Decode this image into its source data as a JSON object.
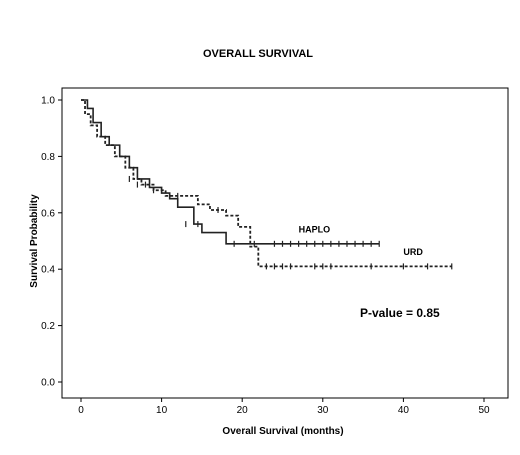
{
  "chart_data": {
    "type": "line",
    "title": "OVERALL SURVIVAL",
    "xlabel": "Overall Survival (months)",
    "ylabel": "Survival Probability",
    "xlim": [
      0,
      50
    ],
    "ylim": [
      0,
      1.0
    ],
    "xticks": [
      "0",
      "10",
      "20",
      "30",
      "40",
      "50"
    ],
    "yticks": [
      "0.0",
      "0.2",
      "0.4",
      "0.6",
      "0.8",
      "1.0"
    ],
    "grid": false,
    "annotation": "P-value = 0.85",
    "series": [
      {
        "name": "HAPLO",
        "style": "solid",
        "color": "#222222",
        "x": [
          0,
          0.8,
          1.5,
          2.5,
          3.5,
          4.8,
          6,
          7,
          8.5,
          10,
          11,
          12,
          14,
          15,
          18,
          21,
          37
        ],
        "y": [
          1.0,
          0.97,
          0.92,
          0.87,
          0.84,
          0.8,
          0.76,
          0.72,
          0.69,
          0.67,
          0.65,
          0.62,
          0.56,
          0.53,
          0.49,
          0.49,
          0.49
        ],
        "censor_x": [
          13,
          14.5,
          19,
          21.5,
          24,
          25,
          26,
          27,
          28,
          29,
          30,
          31,
          32,
          33,
          34,
          35,
          36,
          37
        ],
        "censor_y": [
          0.56,
          0.56,
          0.49,
          0.49,
          0.49,
          0.49,
          0.49,
          0.49,
          0.49,
          0.49,
          0.49,
          0.49,
          0.49,
          0.49,
          0.49,
          0.49,
          0.49,
          0.49
        ]
      },
      {
        "name": "URD",
        "style": "dashed",
        "color": "#222222",
        "x": [
          0,
          0.5,
          1.2,
          2,
          3,
          4.2,
          5.5,
          6.5,
          7.5,
          9,
          10.5,
          13,
          14.5,
          16,
          18,
          19.5,
          21,
          22,
          46
        ],
        "y": [
          1.0,
          0.95,
          0.91,
          0.87,
          0.84,
          0.8,
          0.76,
          0.72,
          0.7,
          0.68,
          0.66,
          0.66,
          0.63,
          0.61,
          0.59,
          0.55,
          0.48,
          0.41,
          0.41
        ],
        "censor_x": [
          6,
          7,
          8,
          9,
          11,
          12,
          17,
          23,
          24,
          25,
          26,
          29,
          30,
          31,
          36,
          40,
          43,
          46
        ],
        "censor_y": [
          0.72,
          0.7,
          0.7,
          0.68,
          0.66,
          0.66,
          0.61,
          0.41,
          0.41,
          0.41,
          0.41,
          0.41,
          0.41,
          0.41,
          0.41,
          0.41,
          0.41,
          0.41
        ]
      }
    ],
    "series_labels": [
      {
        "text": "HAPLO",
        "x": 27,
        "y": 0.53
      },
      {
        "text": "URD",
        "x": 40,
        "y": 0.45
      }
    ]
  }
}
